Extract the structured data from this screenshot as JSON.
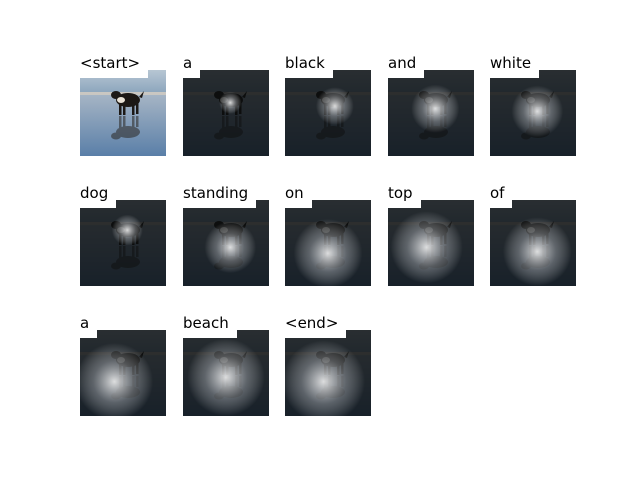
{
  "cells": [
    {
      "word": "<start>",
      "kind": "photo"
    },
    {
      "word": "a",
      "kind": "attention",
      "glow": [
        0.55,
        0.38,
        0.13
      ]
    },
    {
      "word": "black",
      "kind": "attention",
      "glow": [
        0.58,
        0.42,
        0.22
      ]
    },
    {
      "word": "and",
      "kind": "attention",
      "glow": [
        0.55,
        0.45,
        0.28
      ]
    },
    {
      "word": "white",
      "kind": "attention",
      "glow": [
        0.55,
        0.48,
        0.3
      ]
    },
    {
      "word": "dog",
      "kind": "attention",
      "glow": [
        0.55,
        0.35,
        0.18
      ]
    },
    {
      "word": "standing",
      "kind": "attention",
      "glow": [
        0.55,
        0.55,
        0.3
      ]
    },
    {
      "word": "on",
      "kind": "attention",
      "glow": [
        0.5,
        0.62,
        0.4
      ]
    },
    {
      "word": "top",
      "kind": "attention",
      "glow": [
        0.45,
        0.55,
        0.42
      ]
    },
    {
      "word": "of",
      "kind": "attention",
      "glow": [
        0.55,
        0.6,
        0.4
      ]
    },
    {
      "word": "a",
      "kind": "attention",
      "glow": [
        0.4,
        0.6,
        0.45
      ]
    },
    {
      "word": "beach",
      "kind": "attention",
      "glow": [
        0.5,
        0.55,
        0.45
      ]
    },
    {
      "word": "<end>",
      "kind": "attention",
      "glow": [
        0.45,
        0.6,
        0.48
      ]
    }
  ]
}
